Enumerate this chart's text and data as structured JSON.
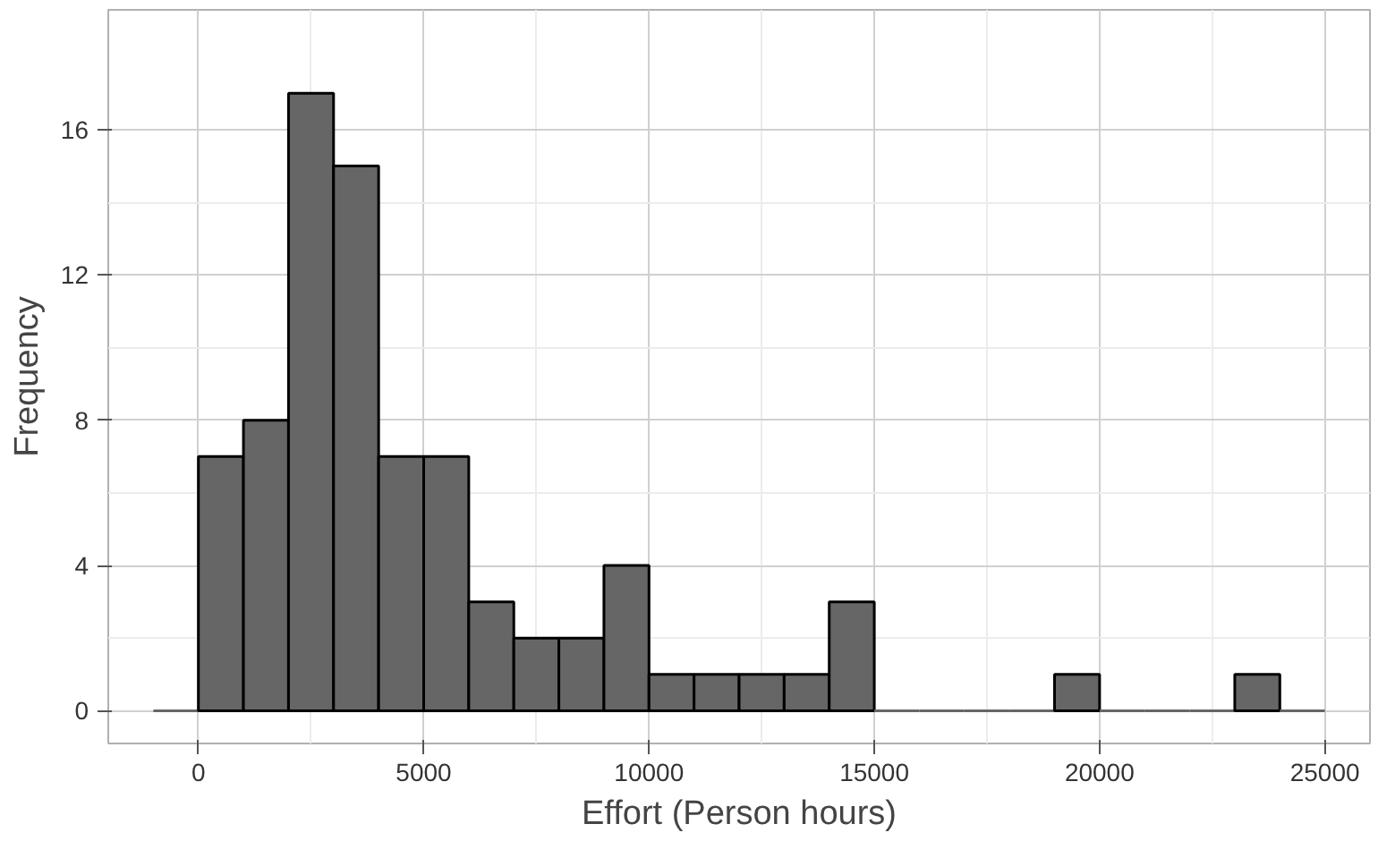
{
  "chart_data": {
    "type": "histogram",
    "xlabel": "Effort (Person hours)",
    "ylabel": "Frequency",
    "bins": [
      -1000,
      0,
      1000,
      2000,
      3000,
      4000,
      5000,
      6000,
      7000,
      8000,
      9000,
      10000,
      11000,
      12000,
      13000,
      14000,
      15000,
      16000,
      17000,
      18000,
      19000,
      20000,
      21000,
      22000,
      23000,
      24000,
      25000
    ],
    "values": [
      0,
      7,
      8,
      17,
      15,
      7,
      7,
      3,
      2,
      2,
      4,
      1,
      1,
      1,
      1,
      3,
      0,
      0,
      0,
      0,
      1,
      0,
      0,
      0,
      1,
      0
    ],
    "color": "#666666",
    "xlim": [
      -2000,
      26000
    ],
    "ylim": [
      -0.9,
      19.3
    ],
    "xticks": [
      0,
      5000,
      10000,
      15000,
      20000,
      25000
    ],
    "yticks": [
      0,
      4,
      8,
      12,
      16
    ],
    "grid": true
  }
}
